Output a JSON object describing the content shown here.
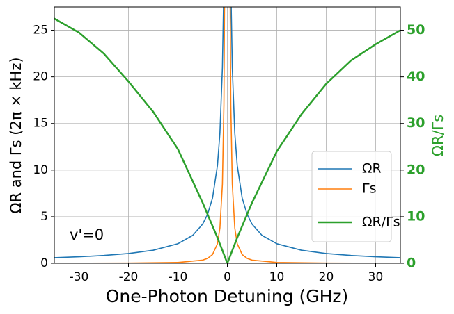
{
  "chart_data": {
    "type": "line",
    "xlabel": "One-Photon Detuning (GHz)",
    "ylabel": "ΩR and Γs (2π × kHz)",
    "y2label": "ΩR/Γs",
    "annotation": "v'=0",
    "xlim": [
      -35,
      35
    ],
    "xticks": [
      -30,
      -20,
      -10,
      0,
      10,
      20,
      30
    ],
    "ylim": [
      0,
      27.5
    ],
    "yticks": [
      0,
      5,
      10,
      15,
      20,
      25
    ],
    "y2lim": [
      0,
      55
    ],
    "y2ticks": [
      0,
      10,
      20,
      30,
      40,
      50
    ],
    "grid": true,
    "legend": "lower right",
    "series": [
      {
        "name": "ΩR",
        "color": "#1f77b4",
        "x": [
          -35,
          -30,
          -25,
          -20,
          -15,
          -10,
          -7,
          -5,
          -4,
          -3,
          -2,
          -1.5,
          -1,
          -0.7,
          0.7,
          1,
          1.5,
          2,
          3,
          4,
          5,
          7,
          10,
          15,
          20,
          25,
          30,
          35
        ],
        "values": [
          0.6,
          0.7,
          0.84,
          1.05,
          1.4,
          2.1,
          3,
          4.2,
          5.25,
          7,
          10.5,
          14,
          21,
          30,
          30,
          21,
          14,
          10.5,
          7,
          5.25,
          4.2,
          3,
          2.1,
          1.4,
          1.05,
          0.84,
          0.7,
          0.6
        ]
      },
      {
        "name": "Γs",
        "color": "#ff7f0e",
        "x": [
          -35,
          -20,
          -10,
          -5,
          -4,
          -3,
          -2,
          -1.5,
          -1,
          -0.7,
          -0.5,
          0.5,
          0.7,
          1,
          1.5,
          2,
          3,
          4,
          5,
          10,
          20,
          35
        ],
        "values": [
          0.01,
          0.02,
          0.09,
          0.34,
          0.53,
          0.94,
          2.1,
          3.8,
          8.5,
          17,
          34,
          34,
          17,
          8.5,
          3.8,
          2.1,
          0.94,
          0.53,
          0.34,
          0.09,
          0.02,
          0.01
        ]
      },
      {
        "name": "ΩR/Γs",
        "color": "#2ca02c",
        "axis": "y2",
        "x": [
          -35,
          -30,
          -25,
          -20,
          -15,
          -10,
          -5,
          -2,
          0,
          2,
          5,
          10,
          15,
          20,
          25,
          30,
          35
        ],
        "values": [
          52.5,
          49.5,
          45,
          39,
          32.5,
          24.5,
          13,
          5.5,
          0,
          5.5,
          13,
          24,
          32,
          38.5,
          43.5,
          47,
          50
        ]
      }
    ]
  }
}
